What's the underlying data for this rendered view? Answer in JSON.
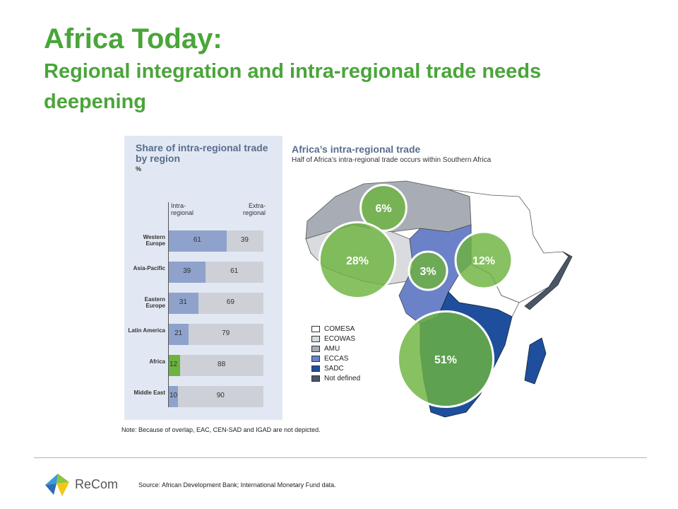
{
  "slide": {
    "title": "Africa Today:",
    "subtitle": "Regional integration and intra-regional trade needs deepening"
  },
  "chart_data": [
    {
      "type": "bar",
      "title": "Share of intra-regional trade by region",
      "unit": "%",
      "col_intra": "Intra-regional",
      "col_extra": "Extra-regional",
      "categories": [
        "Western Europe",
        "Asia-Pacific",
        "Eastern Europe",
        "Latin America",
        "Africa",
        "Middle East"
      ],
      "series": [
        {
          "name": "Intra-regional",
          "values": [
            61,
            39,
            31,
            21,
            12,
            10
          ]
        },
        {
          "name": "Extra-regional",
          "values": [
            39,
            61,
            69,
            79,
            88,
            90
          ]
        }
      ],
      "colors": {
        "intra": "#8ea2cc",
        "intra_highlight": "#6cb33f",
        "extra": "#cdd0d6"
      }
    },
    {
      "type": "map",
      "title": "Africa’s intra-regional trade",
      "subtitle": "Half of Africa’s intra-regional trade occurs within Southern Africa",
      "bubbles": [
        {
          "label": "6%",
          "value": 6
        },
        {
          "label": "28%",
          "value": 28
        },
        {
          "label": "3%",
          "value": 3
        },
        {
          "label": "12%",
          "value": 12
        },
        {
          "label": "51%",
          "value": 51
        }
      ],
      "legend": [
        {
          "label": "COMESA",
          "color": "#ffffff"
        },
        {
          "label": "ECOWAS",
          "color": "#d9dbde"
        },
        {
          "label": "AMU",
          "color": "#a8adb5"
        },
        {
          "label": "ECCAS",
          "color": "#6c82c8"
        },
        {
          "label": "SADC",
          "color": "#1f4f9c"
        },
        {
          "label": "Not defined",
          "color": "#4a5568"
        }
      ]
    }
  ],
  "note": "Note: Because of overlap, EAC, CEN-SAD and IGAD are not depicted.",
  "source": "Source: African Development Bank; International Monetary Fund data.",
  "logo": {
    "text": "ReCom"
  }
}
